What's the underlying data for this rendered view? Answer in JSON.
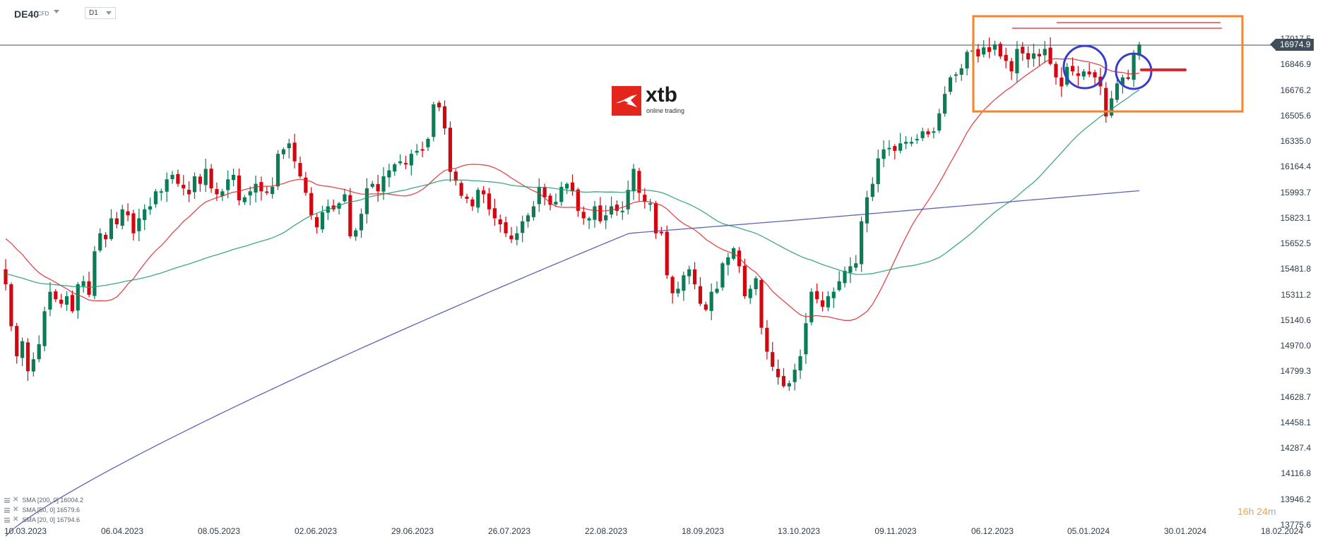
{
  "header": {
    "symbol": "DE40",
    "symbol_type": "CFD",
    "timeframe": "D1"
  },
  "logo": {
    "name": "xtb",
    "tagline": "online trading"
  },
  "current_price": "16974.9",
  "countdown": {
    "hours": "16",
    "hours_unit": "h",
    "minutes": "24",
    "minutes_unit": "m"
  },
  "indicators": [
    {
      "label": "SMA [200, 0] 16004.2",
      "color": "#3f4aa8"
    },
    {
      "label": "SMA [50, 0] 16579.6",
      "color": "#0f8a5f"
    },
    {
      "label": "SMA [20, 0] 16794.6",
      "color": "#e0262a"
    }
  ],
  "colors": {
    "bull": "#0a7d57",
    "bear": "#d3070f",
    "sma200": "#3f4aa8",
    "sma50": "#1f9a6c",
    "sma20": "#e0262a",
    "annotation_box": "#f7842b",
    "annotation_circle": "#3a3dcc",
    "annotation_lines": "#e0262a",
    "price_line": "#3f4e5a"
  },
  "chart_data": {
    "type": "candlestick",
    "title": "DE40 CFD D1",
    "xlabel": "",
    "ylabel": "",
    "y_ticks": [
      "17017.5",
      "16846.9",
      "16676.2",
      "16505.6",
      "16335.0",
      "16164.4",
      "15993.7",
      "15823.1",
      "15652.5",
      "15481.8",
      "15311.2",
      "15140.6",
      "14970.0",
      "14799.3",
      "14628.7",
      "14458.1",
      "14287.4",
      "14116.8",
      "13946.2",
      "13775.6"
    ],
    "x_ticks": [
      "10.03.2023",
      "06.04.2023",
      "08.05.2023",
      "02.06.2023",
      "29.06.2023",
      "26.07.2023",
      "22.08.2023",
      "18.09.2023",
      "13.10.2023",
      "09.11.2023",
      "06.12.2023",
      "05.01.2024",
      "30.01.2024",
      "18.02.2024"
    ],
    "ylim": [
      13775.6,
      17017.5
    ],
    "grid": false,
    "legend_position": "bottom-left",
    "last_price": 16974.9,
    "series": [
      {
        "name": "SMA [200, 0]",
        "last": 16004.2
      },
      {
        "name": "SMA [50, 0]",
        "last": 16579.6
      },
      {
        "name": "SMA [20, 0]",
        "last": 16794.6
      }
    ],
    "closes": [
      15380,
      15100,
      14900,
      15000,
      14800,
      14880,
      14980,
      15200,
      15330,
      15280,
      15250,
      15300,
      15200,
      15380,
      15400,
      15310,
      15600,
      15720,
      15680,
      15820,
      15780,
      15880,
      15840,
      15720,
      15820,
      15880,
      15900,
      16000,
      16000,
      16080,
      16110,
      16050,
      16020,
      15980,
      16100,
      16050,
      16150,
      16020,
      15980,
      16000,
      16080,
      16110,
      15940,
      15960,
      16000,
      16050,
      16000,
      15990,
      16030,
      16250,
      16280,
      16320,
      16200,
      16100,
      15990,
      15840,
      15760,
      15860,
      15900,
      15880,
      15920,
      15980,
      15700,
      15740,
      15850,
      16020,
      16050,
      16000,
      16100,
      16140,
      16180,
      16200,
      16180,
      16250,
      16270,
      16280,
      16350,
      16580,
      16560,
      16420,
      16130,
      16070,
      15970,
      15950,
      15900,
      16010,
      15980,
      15880,
      15820,
      15780,
      15720,
      15680,
      15720,
      15800,
      15840,
      15900,
      16030,
      15960,
      15910,
      15930,
      16030,
      16050,
      16000,
      15870,
      15820,
      15820,
      15900,
      15800,
      15840,
      15900,
      15870,
      15870,
      16010,
      16150,
      15990,
      15930,
      15920,
      15720,
      15720,
      15440,
      15320,
      15350,
      15440,
      15480,
      15380,
      15250,
      15210,
      15330,
      15350,
      15520,
      15560,
      15620,
      15500,
      15300,
      15350,
      15420,
      15090,
      14930,
      14830,
      14760,
      14700,
      14720,
      14810,
      14900,
      15120,
      15330,
      15280,
      15230,
      15300,
      15330,
      15400,
      15470,
      15500,
      15520,
      15800,
      15960,
      16050,
      16220,
      16280,
      16290,
      16270,
      16320,
      16330,
      16330,
      16350,
      16400,
      16380,
      16400,
      16520,
      16650,
      16760,
      16780,
      16820,
      16930,
      16940,
      16900,
      16960,
      16930,
      16980,
      16900,
      16870,
      16800,
      16950,
      16920,
      16880,
      16920,
      16900,
      16950,
      16850,
      16760,
      16700,
      16830,
      16800,
      16770,
      16800,
      16780,
      16760,
      16700,
      16500,
      16620,
      16720,
      16760,
      16750,
      16920,
      16980
    ]
  },
  "annotations": {
    "resistance_1": "17080",
    "resistance_2": "17050"
  }
}
